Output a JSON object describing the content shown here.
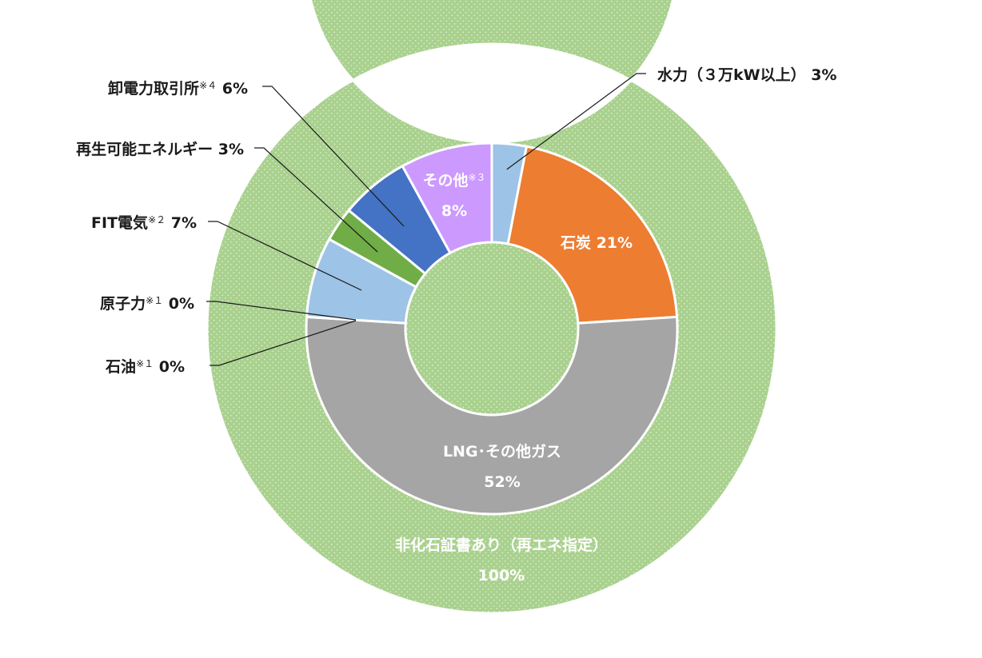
{
  "chart_data": {
    "type": "pie",
    "variant": "nested-donut",
    "outer_ring": {
      "slices": [
        {
          "label": "非化石証書あり（再エネ指定）",
          "value_text": "100%",
          "value": 100,
          "color": "#a9d18e",
          "pattern": "dots"
        }
      ]
    },
    "inner_ring": {
      "start": "top",
      "direction": "clockwise",
      "slices": [
        {
          "id": "hydro",
          "label": "水力（３万kW以上）",
          "sup": "",
          "value_text": "3%",
          "value": 3,
          "color": "#9dc3e6",
          "label_position": "outside-right"
        },
        {
          "id": "coal",
          "label": "石炭",
          "sup": "",
          "value_text": "21%",
          "value": 21,
          "color": "#ed7d31",
          "label_position": "inside"
        },
        {
          "id": "lng",
          "label": "LNG･その他ガス",
          "sup": "",
          "value_text": "52%",
          "value": 52,
          "color": "#a5a5a5",
          "label_position": "inside"
        },
        {
          "id": "oil",
          "label": "石油",
          "sup": "※１",
          "value_text": "0%",
          "value": 0,
          "color": "#5b9bd5",
          "label_position": "outside-left"
        },
        {
          "id": "nuclear",
          "label": "原子力",
          "sup": "※１",
          "value_text": "0%",
          "value": 0,
          "color": "#ffc000",
          "label_position": "outside-left"
        },
        {
          "id": "fit",
          "label": "FIT電気",
          "sup": "※２",
          "value_text": "7%",
          "value": 7,
          "color": "#9dc3e6",
          "label_position": "outside-left"
        },
        {
          "id": "renewable",
          "label": "再生可能エネルギー",
          "sup": "",
          "value_text": "3%",
          "value": 3,
          "color": "#70ad47",
          "label_position": "outside-left"
        },
        {
          "id": "jepx",
          "label": "卸電力取引所",
          "sup": "※４",
          "value_text": "6%",
          "value": 6,
          "color": "#4472c4",
          "label_position": "outside-left"
        },
        {
          "id": "other",
          "label": "その他",
          "sup": "※３",
          "value_text": "8%",
          "value": 8,
          "color": "#cc99ff",
          "label_position": "inside"
        }
      ]
    },
    "title": "",
    "legend": "none"
  }
}
